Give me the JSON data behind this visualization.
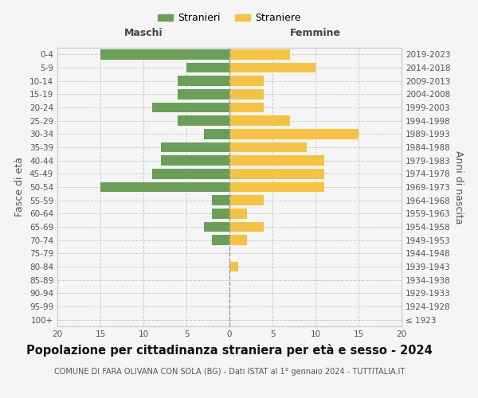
{
  "age_groups": [
    "100+",
    "95-99",
    "90-94",
    "85-89",
    "80-84",
    "75-79",
    "70-74",
    "65-69",
    "60-64",
    "55-59",
    "50-54",
    "45-49",
    "40-44",
    "35-39",
    "30-34",
    "25-29",
    "20-24",
    "15-19",
    "10-14",
    "5-9",
    "0-4"
  ],
  "birth_years": [
    "≤ 1923",
    "1924-1928",
    "1929-1933",
    "1934-1938",
    "1939-1943",
    "1944-1948",
    "1949-1953",
    "1954-1958",
    "1959-1963",
    "1964-1968",
    "1969-1973",
    "1974-1978",
    "1979-1983",
    "1984-1988",
    "1989-1993",
    "1994-1998",
    "1999-2003",
    "2004-2008",
    "2009-2013",
    "2014-2018",
    "2019-2023"
  ],
  "males": [
    0,
    0,
    0,
    0,
    0,
    0,
    2,
    3,
    2,
    2,
    15,
    9,
    8,
    8,
    3,
    6,
    9,
    6,
    6,
    5,
    15
  ],
  "females": [
    0,
    0,
    0,
    0,
    1,
    0,
    2,
    4,
    2,
    4,
    11,
    11,
    11,
    9,
    15,
    7,
    4,
    4,
    4,
    10,
    7
  ],
  "male_color": "#6a9f58",
  "female_color": "#f5c242",
  "background_color": "#f5f5f5",
  "grid_color": "#cccccc",
  "title": "Popolazione per cittadinanza straniera per età e sesso - 2024",
  "subtitle": "COMUNE DI FARA OLIVANA CON SOLA (BG) - Dati ISTAT al 1° gennaio 2024 - TUTTITALIA.IT",
  "xlabel_left": "Maschi",
  "xlabel_right": "Femmine",
  "ylabel_left": "Fasce di età",
  "ylabel_right": "Anni di nascita",
  "legend_male": "Stranieri",
  "legend_female": "Straniere",
  "xlim": 20,
  "title_fontsize": 10.5,
  "subtitle_fontsize": 7.0,
  "tick_fontsize": 7.5,
  "label_fontsize": 9
}
